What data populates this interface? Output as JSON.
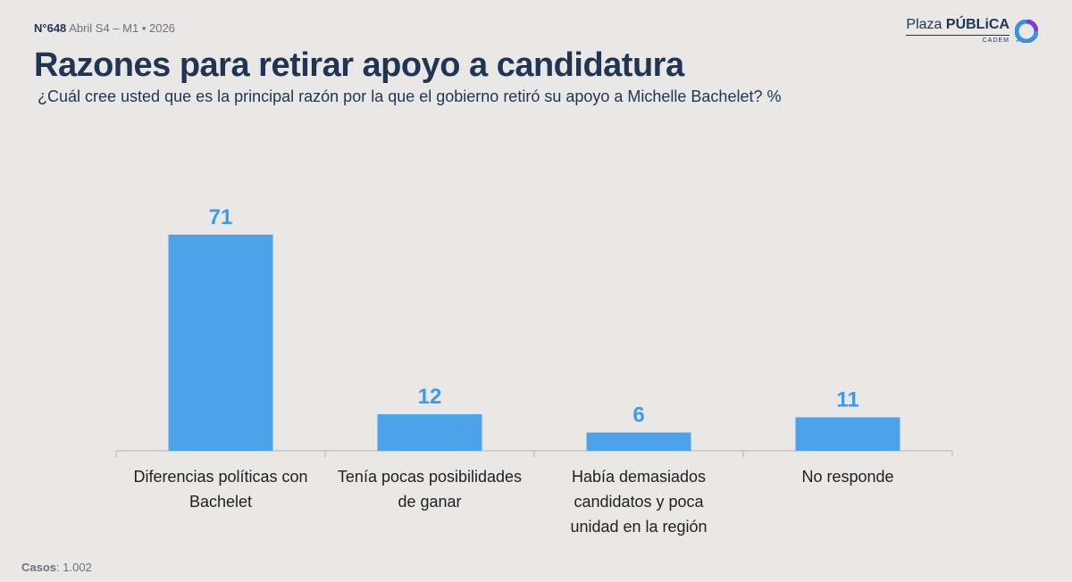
{
  "header": {
    "issue_number": "N°648",
    "period": "Abril S4 – M1 • 2026",
    "logo_plaza": "Plaza",
    "logo_publica": "PÚBLiCA",
    "logo_cadem": "CADEM"
  },
  "title": "Razones para retirar apoyo a candidatura",
  "subtitle": "¿Cuál cree usted que es la principal razón por la que el gobierno retiró su apoyo a Michelle Bachelet? %",
  "footer": {
    "cases_label": "Casos",
    "cases_value": ": 1.002"
  },
  "colors": {
    "bar": "#4da3e9",
    "label": "#3d9be9",
    "title": "#1f3553"
  },
  "chart_data": {
    "type": "bar",
    "title": "Razones para retirar apoyo a candidatura",
    "categories": [
      [
        "Diferencias políticas con",
        "Bachelet"
      ],
      [
        "Tenía pocas posibilidades",
        "de ganar"
      ],
      [
        "Había demasiados",
        "candidatos y poca",
        "unidad en la región"
      ],
      [
        "No responde"
      ]
    ],
    "values": [
      71,
      12,
      6,
      11
    ],
    "ylim": [
      0,
      100
    ],
    "xlabel": "",
    "ylabel": "%"
  }
}
